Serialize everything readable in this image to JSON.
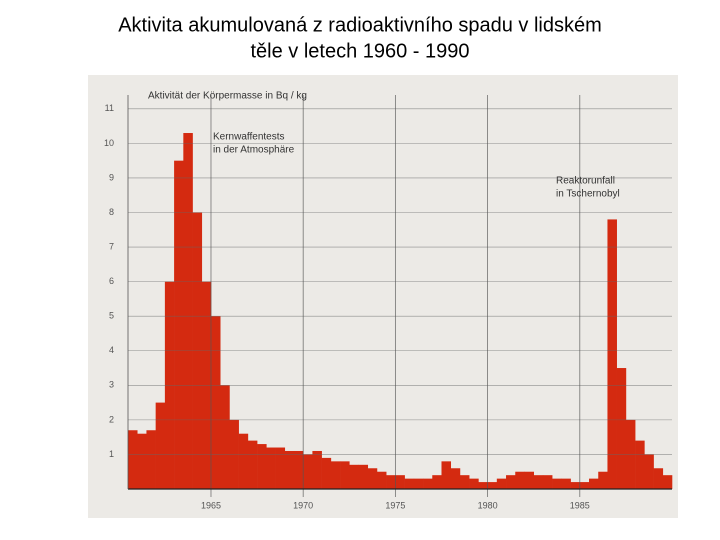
{
  "chart_data": {
    "type": "bar",
    "title": [
      "Aktivita akumulovaná z radioaktivního spadu v lidském",
      "těle v letech 1960 - 1990"
    ],
    "y_label": "Aktivität der Körpermasse in Bq / kg",
    "annotations": [
      [
        "Kernwaffentests",
        "in der Atmosphäre"
      ],
      [
        "Reaktorunfall",
        "in Tschernobyl"
      ]
    ],
    "x": [
      1960.5,
      1961,
      1961.5,
      1962,
      1962.5,
      1963,
      1963.5,
      1964,
      1964.5,
      1965,
      1965.5,
      1966,
      1966.5,
      1967,
      1967.5,
      1968,
      1968.5,
      1969,
      1969.5,
      1970,
      1970.5,
      1971,
      1971.5,
      1972,
      1972.5,
      1973,
      1973.5,
      1974,
      1974.5,
      1975,
      1975.5,
      1976,
      1976.5,
      1977,
      1977.5,
      1978,
      1978.5,
      1979,
      1979.5,
      1980,
      1980.5,
      1981,
      1981.5,
      1982,
      1982.5,
      1983,
      1983.5,
      1984,
      1984.5,
      1985,
      1985.5,
      1986,
      1986.5,
      1987,
      1987.5,
      1988,
      1988.5,
      1989,
      1989.5
    ],
    "values": [
      1.7,
      1.6,
      1.7,
      2.5,
      6.0,
      9.5,
      10.3,
      8.0,
      6.0,
      5.0,
      3.0,
      2.0,
      1.6,
      1.4,
      1.3,
      1.2,
      1.2,
      1.1,
      1.1,
      1.0,
      1.1,
      0.9,
      0.8,
      0.8,
      0.7,
      0.7,
      0.6,
      0.5,
      0.4,
      0.4,
      0.3,
      0.3,
      0.3,
      0.4,
      0.8,
      0.6,
      0.4,
      0.3,
      0.2,
      0.2,
      0.3,
      0.4,
      0.5,
      0.5,
      0.4,
      0.4,
      0.3,
      0.3,
      0.2,
      0.2,
      0.3,
      0.5,
      7.8,
      3.5,
      2.0,
      1.4,
      1.0,
      0.6,
      0.4
    ],
    "color": "#d42a10",
    "xlim": [
      1960.5,
      1990
    ],
    "xticks": [
      1965,
      1970,
      1975,
      1980,
      1985
    ],
    "ylim": [
      0,
      11.4
    ],
    "yticks": [
      1,
      2,
      3,
      4,
      5,
      6,
      7,
      8,
      9,
      10,
      11
    ],
    "grid": true
  }
}
